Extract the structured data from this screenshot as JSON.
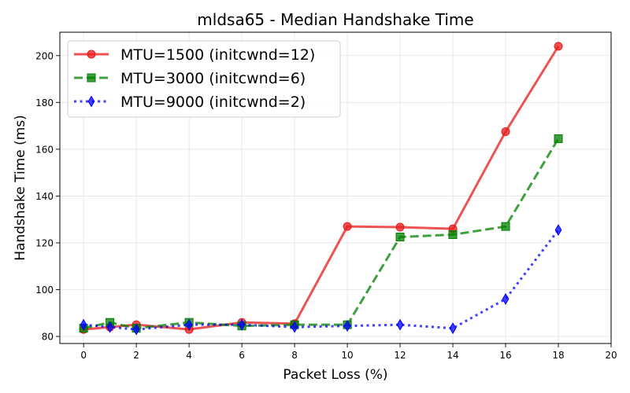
{
  "chart_data": {
    "type": "line",
    "title": "mldsa65 - Median Handshake Time",
    "xlabel": "Packet Loss (%)",
    "ylabel": "Handshake Time (ms)",
    "xlim": [
      -0.9,
      20
    ],
    "ylim": [
      77,
      210
    ],
    "xticks": [
      0,
      2,
      4,
      6,
      8,
      10,
      12,
      14,
      16,
      18,
      20
    ],
    "yticks": [
      80,
      100,
      120,
      140,
      160,
      180,
      200
    ],
    "grid": true,
    "legend_position": "top-left",
    "series": [
      {
        "name": "MTU=1500 (initcwnd=12)",
        "color": "#e8191a",
        "linestyle": "solid",
        "marker": "circle",
        "x": [
          0,
          1,
          2,
          4,
          6,
          8,
          10,
          12,
          14,
          16,
          18
        ],
        "y": [
          83,
          84,
          85,
          83,
          86,
          85.5,
          127,
          126.7,
          126,
          167.5,
          204
        ]
      },
      {
        "name": "MTU=3000 (initcwnd=6)",
        "color": "#008000",
        "linestyle": "dashed",
        "marker": "square",
        "x": [
          0,
          1,
          2,
          4,
          6,
          8,
          10,
          12,
          14,
          16,
          18
        ],
        "y": [
          83.5,
          86,
          83.5,
          86,
          84.5,
          85,
          85,
          122.5,
          123.5,
          127,
          164.5
        ]
      },
      {
        "name": "MTU=9000 (initcwnd=2)",
        "color": "#0000ff",
        "linestyle": "dotted",
        "marker": "thin_diamond",
        "x": [
          0,
          1,
          2,
          4,
          6,
          8,
          10,
          12,
          14,
          16,
          18
        ],
        "y": [
          85,
          84,
          83,
          85,
          85,
          84,
          84.5,
          85,
          83.5,
          96,
          125.5
        ]
      }
    ]
  }
}
